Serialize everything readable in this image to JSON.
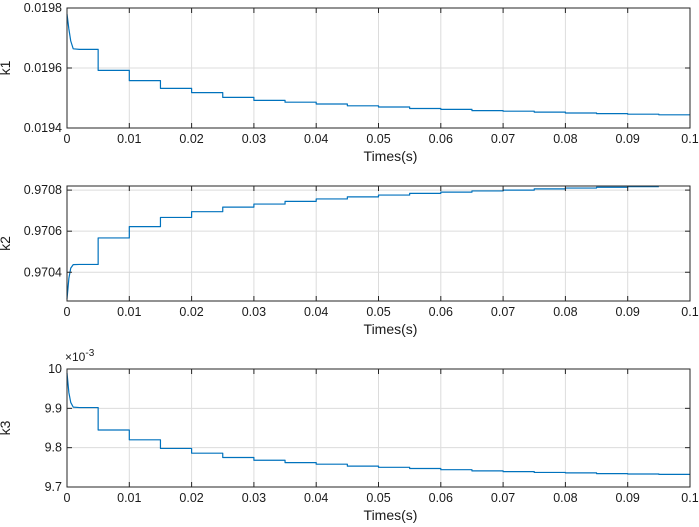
{
  "chart_data": [
    {
      "type": "line",
      "xlabel": "Times(s)",
      "ylabel": "k1",
      "xlim": [
        0,
        0.1
      ],
      "ylim": [
        0.0194,
        0.0198
      ],
      "xticks": [
        0,
        0.01,
        0.02,
        0.03,
        0.04,
        0.05,
        0.06,
        0.07,
        0.08,
        0.09,
        0.1
      ],
      "xtick_labels": [
        "0",
        "0.01",
        "0.02",
        "0.03",
        "0.04",
        "0.05",
        "0.06",
        "0.07",
        "0.08",
        "0.09",
        "0.1"
      ],
      "yticks": [
        0.0194,
        0.0196,
        0.0198
      ],
      "ytick_labels": [
        "0.0194",
        "0.0196",
        "0.0198"
      ],
      "exponent_label": "",
      "grid": true,
      "line_color": "#0072BD",
      "series": [
        {
          "x": [
            0,
            0.0003,
            0.0006,
            0.001,
            0.002,
            0.005,
            0.005,
            0.01,
            0.01,
            0.015,
            0.015,
            0.02,
            0.02,
            0.025,
            0.025,
            0.03,
            0.03,
            0.035,
            0.035,
            0.04,
            0.04,
            0.045,
            0.045,
            0.05,
            0.05,
            0.055,
            0.055,
            0.06,
            0.06,
            0.065,
            0.065,
            0.07,
            0.07,
            0.075,
            0.075,
            0.08,
            0.08,
            0.085,
            0.085,
            0.09,
            0.09,
            0.095,
            0.095,
            0.1
          ],
          "y": [
            0.01978,
            0.01973,
            0.01969,
            0.019664,
            0.019662,
            0.019662,
            0.019592,
            0.019592,
            0.019558,
            0.019558,
            0.019532,
            0.019532,
            0.019518,
            0.019518,
            0.019502,
            0.019502,
            0.019492,
            0.019492,
            0.019486,
            0.019486,
            0.01948,
            0.01948,
            0.019474,
            0.019474,
            0.01947,
            0.01947,
            0.019465,
            0.019465,
            0.019462,
            0.019462,
            0.019458,
            0.019458,
            0.019456,
            0.019456,
            0.019453,
            0.019453,
            0.01945,
            0.01945,
            0.019448,
            0.019448,
            0.019446,
            0.019446,
            0.019444,
            0.019444
          ]
        }
      ]
    },
    {
      "type": "line",
      "xlabel": "Times(s)",
      "ylabel": "k2",
      "xlim": [
        0,
        0.1
      ],
      "ylim": [
        0.97026,
        0.97082
      ],
      "xticks": [
        0,
        0.01,
        0.02,
        0.03,
        0.04,
        0.05,
        0.06,
        0.07,
        0.08,
        0.09,
        0.1
      ],
      "xtick_labels": [
        "0",
        "0.01",
        "0.02",
        "0.03",
        "0.04",
        "0.05",
        "0.06",
        "0.07",
        "0.08",
        "0.09",
        "0.1"
      ],
      "yticks": [
        0.9704,
        0.9706,
        0.9708
      ],
      "ytick_labels": [
        "0.9704",
        "0.9706",
        "0.9708"
      ],
      "exponent_label": "",
      "grid": true,
      "line_color": "#0072BD",
      "series": [
        {
          "x": [
            0,
            0.0003,
            0.0006,
            0.001,
            0.002,
            0.005,
            0.005,
            0.01,
            0.01,
            0.015,
            0.015,
            0.02,
            0.02,
            0.025,
            0.025,
            0.03,
            0.03,
            0.035,
            0.035,
            0.04,
            0.04,
            0.045,
            0.045,
            0.05,
            0.05,
            0.055,
            0.055,
            0.06,
            0.06,
            0.065,
            0.065,
            0.07,
            0.07,
            0.075,
            0.075,
            0.08,
            0.08,
            0.085,
            0.085,
            0.09,
            0.09,
            0.095
          ],
          "y": [
            0.97027,
            0.97037,
            0.97042,
            0.970437,
            0.970438,
            0.970438,
            0.970567,
            0.970567,
            0.970622,
            0.970622,
            0.970667,
            0.970667,
            0.970695,
            0.970695,
            0.970717,
            0.970717,
            0.970732,
            0.970732,
            0.970745,
            0.970745,
            0.970757,
            0.970757,
            0.970767,
            0.970767,
            0.970776,
            0.970776,
            0.970784,
            0.970784,
            0.97079,
            0.97079,
            0.970796,
            0.970796,
            0.9708,
            0.9708,
            0.970806,
            0.970806,
            0.97081,
            0.97081,
            0.970814,
            0.970814,
            0.970817,
            0.970817
          ]
        }
      ]
    },
    {
      "type": "line",
      "xlabel": "Times(s)",
      "ylabel": "k3",
      "xlim": [
        0,
        0.1
      ],
      "ylim": [
        9.7,
        10.0
      ],
      "xticks": [
        0,
        0.01,
        0.02,
        0.03,
        0.04,
        0.05,
        0.06,
        0.07,
        0.08,
        0.09,
        0.1
      ],
      "xtick_labels": [
        "0",
        "0.01",
        "0.02",
        "0.03",
        "0.04",
        "0.05",
        "0.06",
        "0.07",
        "0.08",
        "0.09",
        "0.1"
      ],
      "yticks": [
        9.7,
        9.8,
        9.9,
        10.0
      ],
      "ytick_labels": [
        "9.7",
        "9.8",
        "9.9",
        "10"
      ],
      "exponent_label": "×10",
      "exponent_power": "-3",
      "grid": true,
      "line_color": "#0072BD",
      "series": [
        {
          "x": [
            0,
            0.0003,
            0.0006,
            0.001,
            0.002,
            0.005,
            0.005,
            0.01,
            0.01,
            0.015,
            0.015,
            0.02,
            0.02,
            0.025,
            0.025,
            0.03,
            0.03,
            0.035,
            0.035,
            0.04,
            0.04,
            0.045,
            0.045,
            0.05,
            0.05,
            0.055,
            0.055,
            0.06,
            0.06,
            0.065,
            0.065,
            0.07,
            0.07,
            0.075,
            0.075,
            0.08,
            0.08,
            0.085,
            0.085,
            0.09,
            0.09,
            0.095,
            0.095,
            0.1
          ],
          "y": [
            9.99,
            9.94,
            9.915,
            9.903,
            9.902,
            9.902,
            9.845,
            9.845,
            9.82,
            9.82,
            9.798,
            9.798,
            9.786,
            9.786,
            9.775,
            9.775,
            9.768,
            9.768,
            9.762,
            9.762,
            9.758,
            9.758,
            9.753,
            9.753,
            9.75,
            9.75,
            9.747,
            9.747,
            9.744,
            9.744,
            9.741,
            9.741,
            9.739,
            9.739,
            9.737,
            9.737,
            9.736,
            9.736,
            9.734,
            9.734,
            9.733,
            9.733,
            9.732,
            9.732
          ]
        }
      ]
    }
  ]
}
